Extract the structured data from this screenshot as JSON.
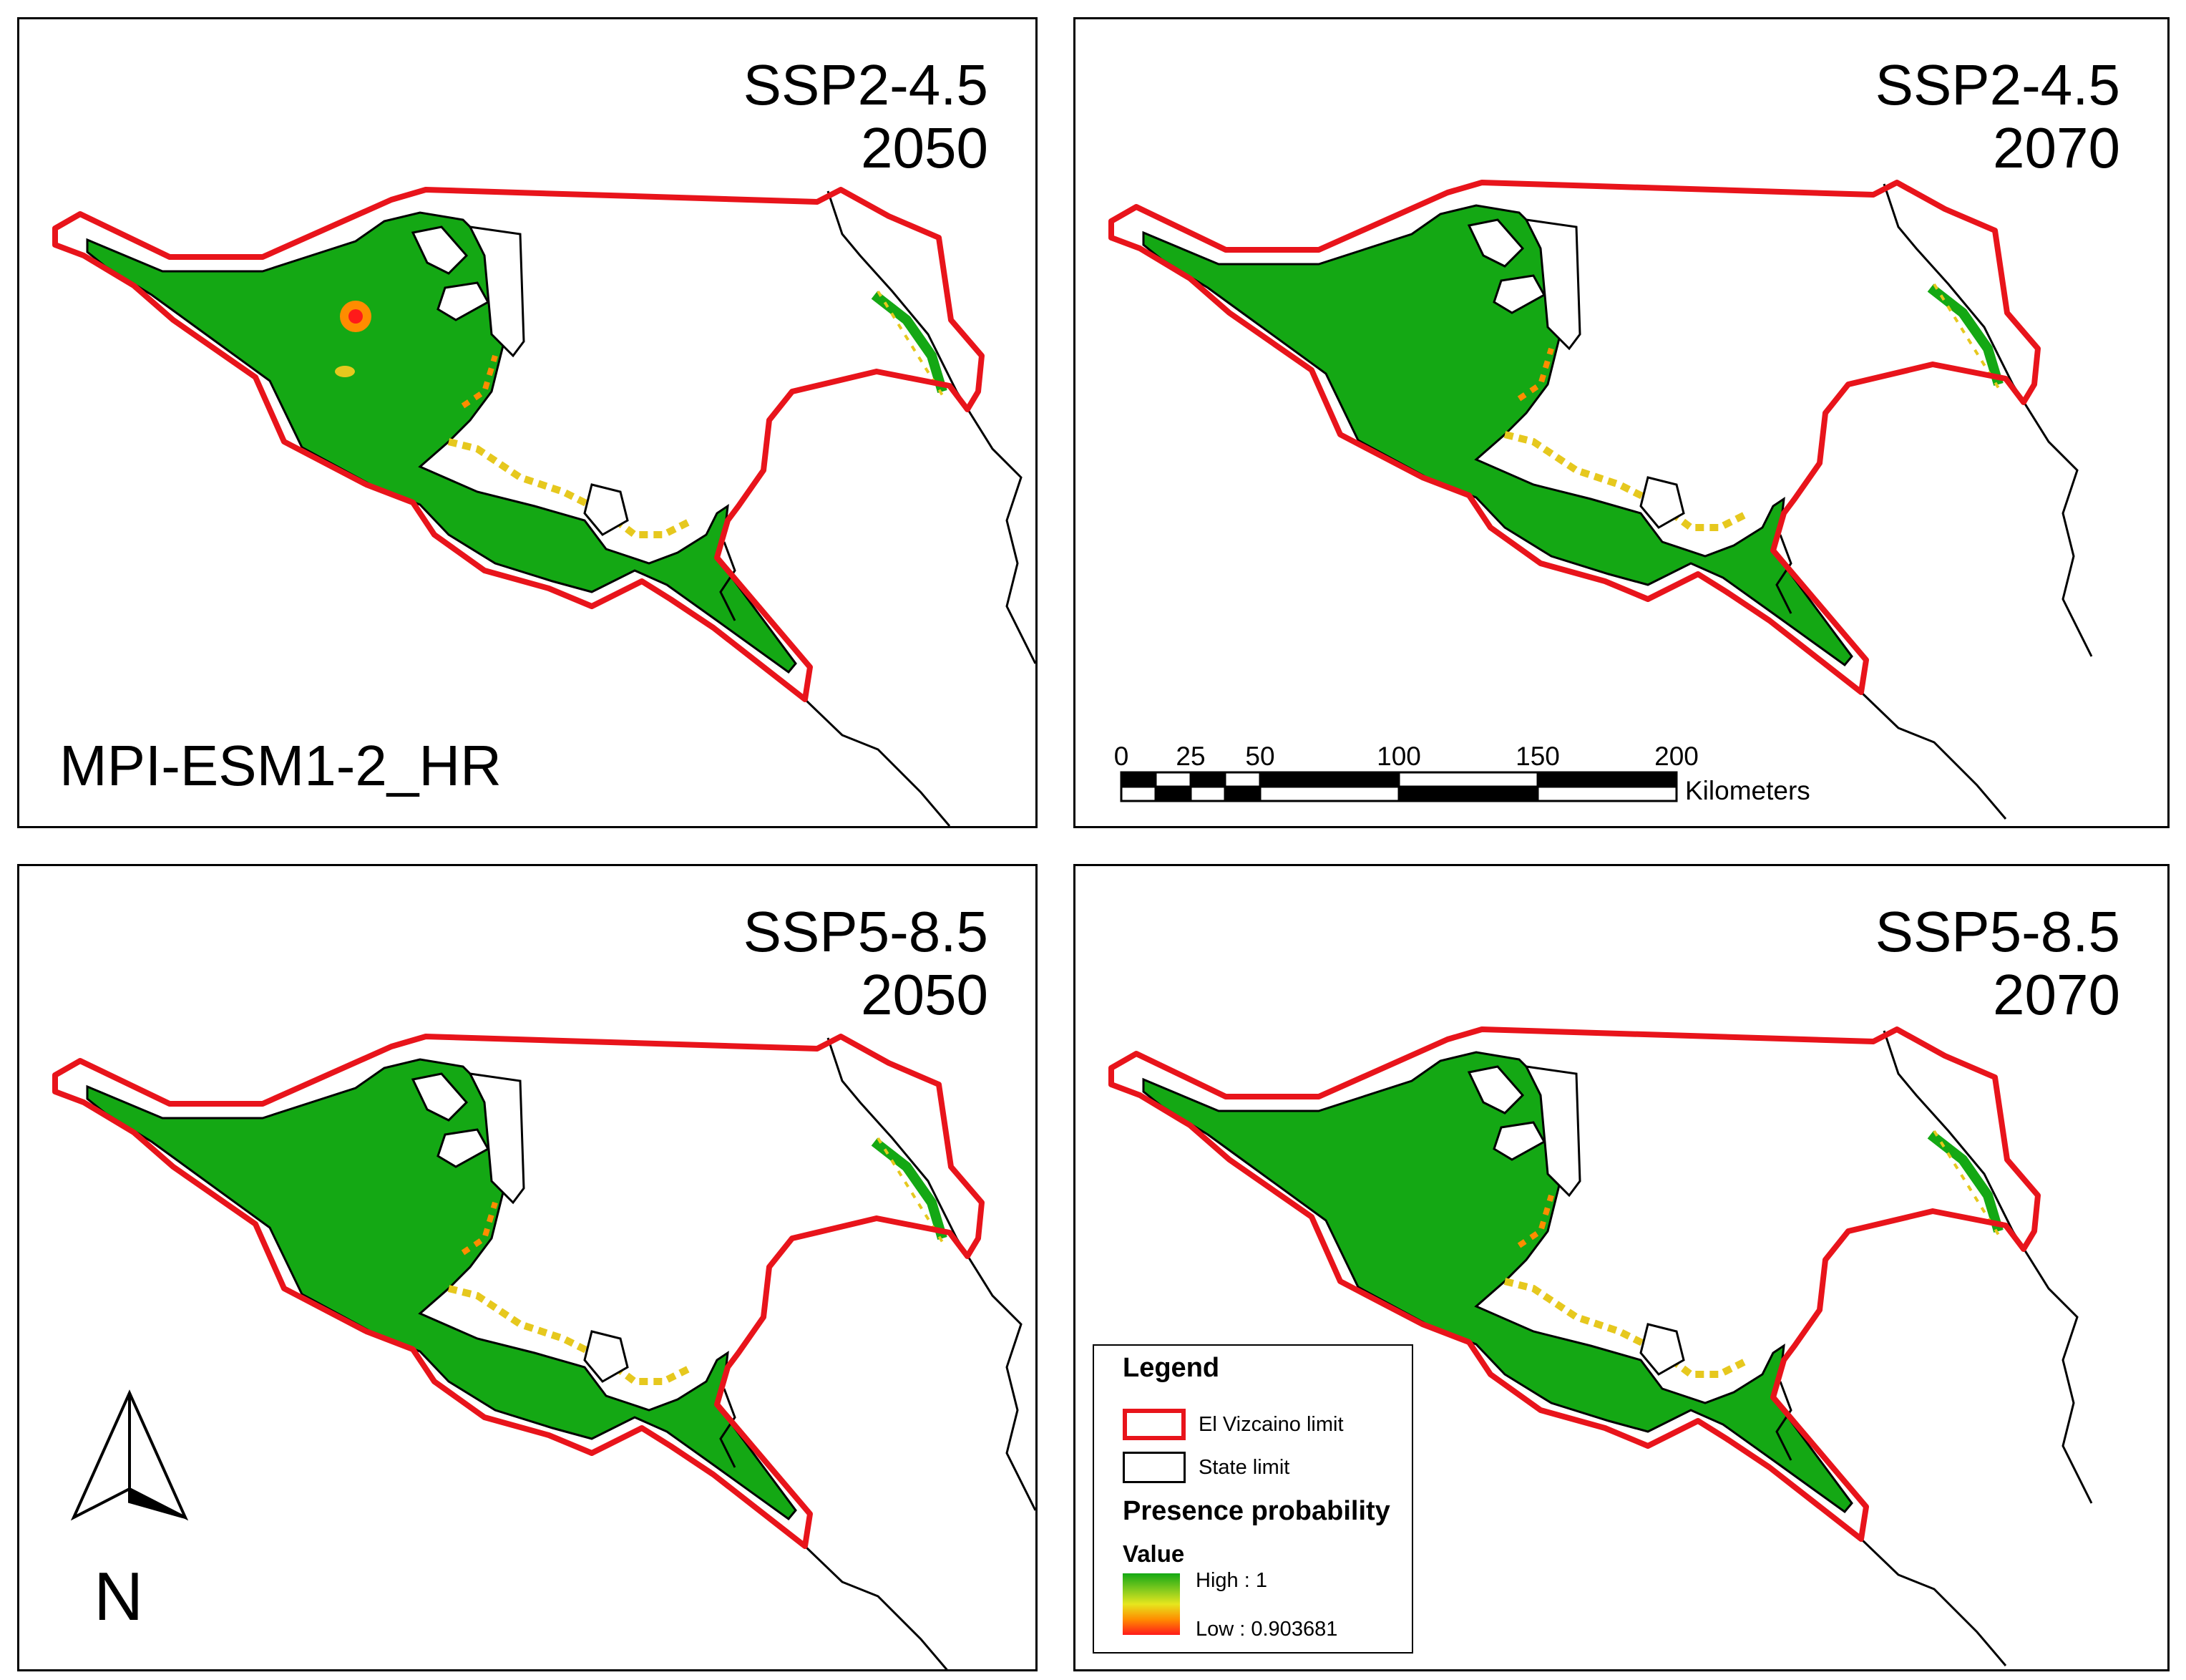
{
  "panels": [
    {
      "scenario": "SSP2-4.5",
      "year": "2050"
    },
    {
      "scenario": "SSP2-4.5",
      "year": "2070"
    },
    {
      "scenario": "SSP5-8.5",
      "year": "2050"
    },
    {
      "scenario": "SSP5-8.5",
      "year": "2070"
    }
  ],
  "model": "MPI-ESM1-2_HR",
  "scale_bar": {
    "ticks": [
      "0",
      "25",
      "50",
      "100",
      "150",
      "200"
    ],
    "unit": "Kilometers"
  },
  "legend": {
    "title": "Legend",
    "items": [
      {
        "label": "El Vizcaino limit",
        "color": "#e8141b"
      },
      {
        "label": "State limit",
        "color": "#000000"
      }
    ],
    "ramp_title": "Presence probability",
    "value_label": "Value",
    "high": "High : 1",
    "low": "Low : 0.903681",
    "ramp_colors": [
      "#14a814",
      "#7cc81e",
      "#e6e61e",
      "#ff8c00",
      "#ff1a1a"
    ]
  },
  "north_arrow": {
    "label": "N"
  },
  "colors": {
    "habitat": "#14a814",
    "boundary": "#e8141b",
    "state": "#000000"
  }
}
